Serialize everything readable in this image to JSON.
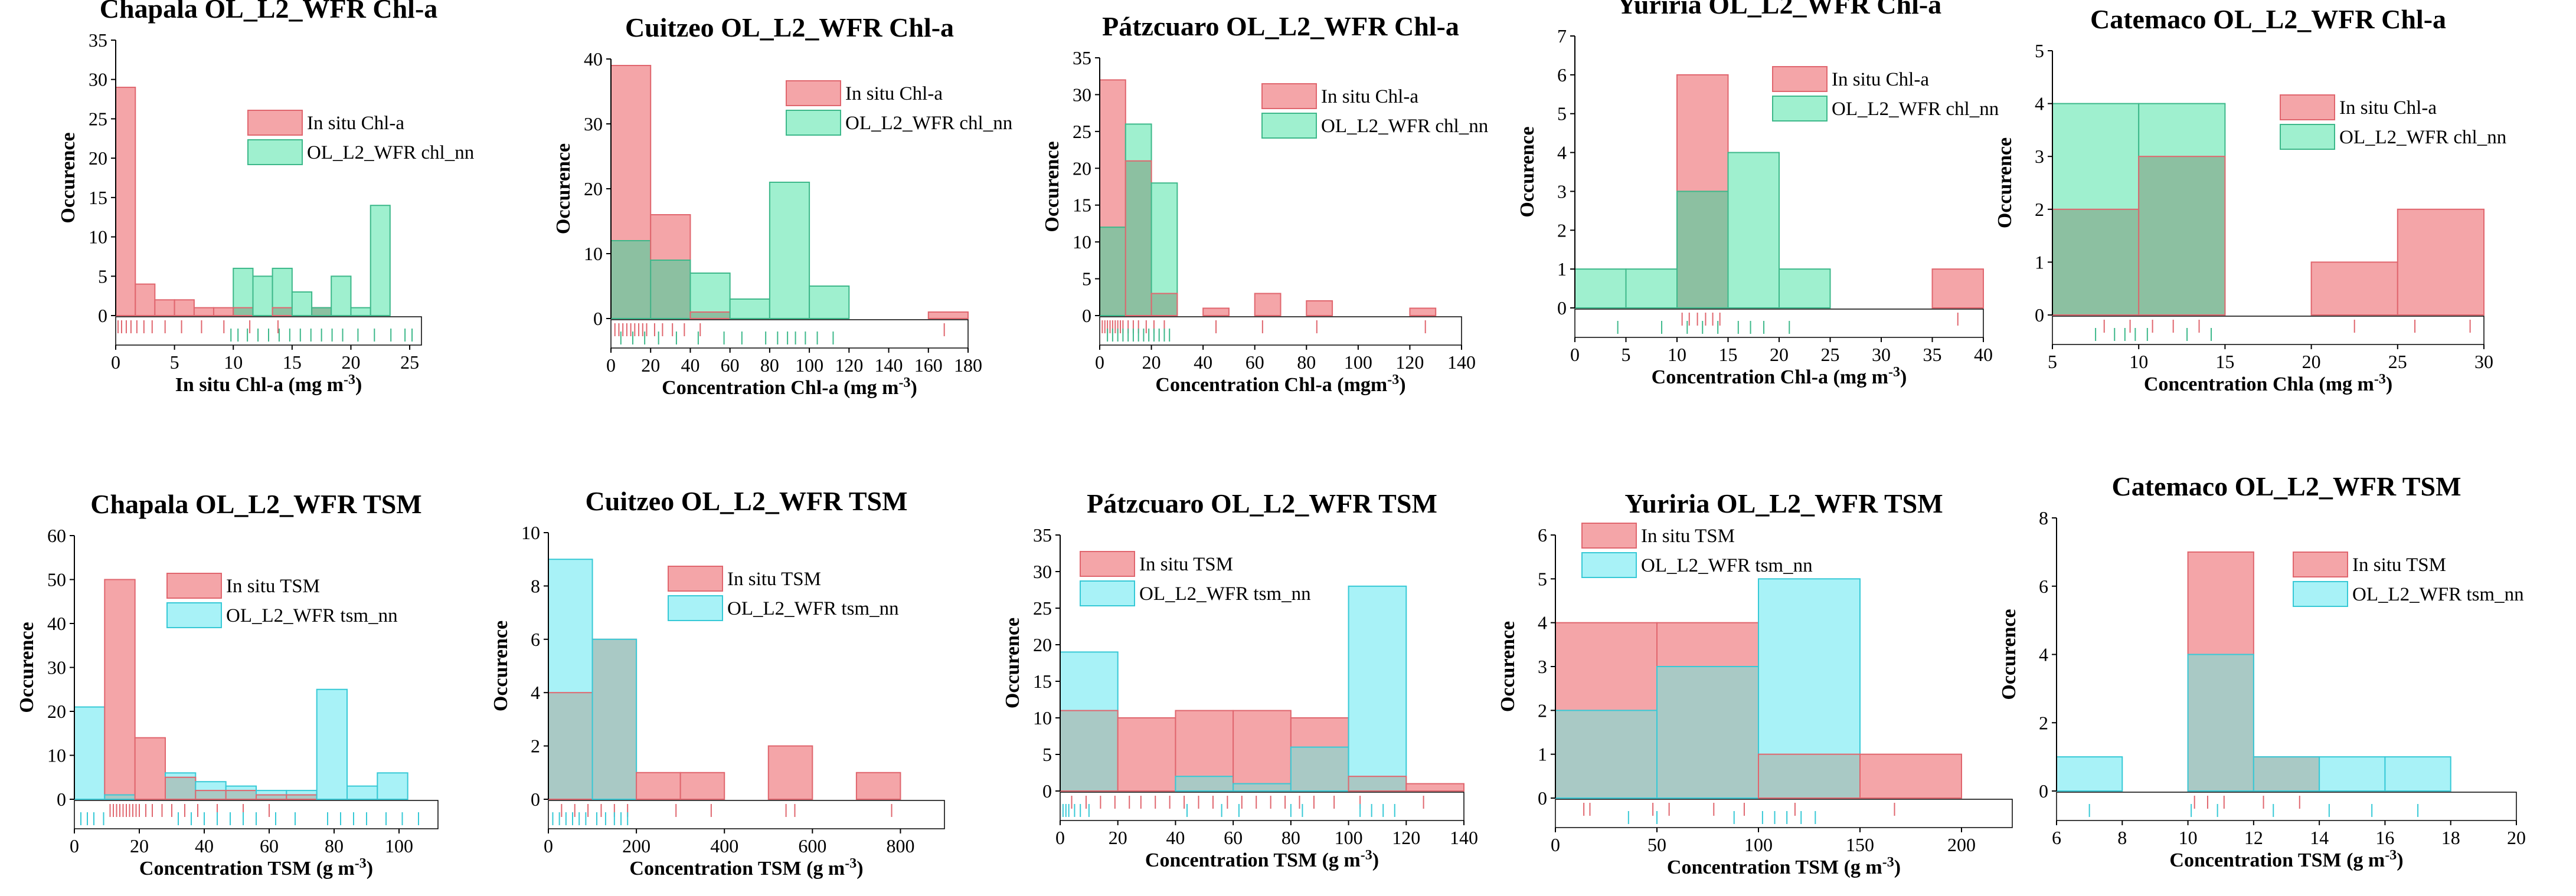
{
  "figure": {
    "title": ""
  },
  "palette": {
    "insitu": "#f4a5a8",
    "insitu_edge": "#e0666e",
    "chl": "#9ff0cf",
    "chl_edge": "#3db88a",
    "chl_overlap": "#8cc0a1",
    "tsm": "#a8f2f7",
    "tsm_edge": "#37c9d6",
    "tsm_overlap": "#a9c9c5",
    "rug_dark": "#555555"
  },
  "chart_data": [
    {
      "type": "bar",
      "title": "Chapala OL_L2_WFR Chl-a",
      "xlabel": "In situ Chl-a (mg m-3)",
      "ylabel": "Occurence",
      "xlim": [
        0,
        26
      ],
      "ylim": [
        0,
        35
      ],
      "xticks": [
        0,
        5,
        10,
        15,
        20,
        25
      ],
      "yticks": [
        0,
        5,
        10,
        15,
        20,
        25,
        30,
        35
      ],
      "bin_edges": [
        0,
        1.67,
        3.33,
        5,
        6.67,
        8.33,
        10,
        11.67,
        13.33,
        15,
        16.67,
        18.33,
        20,
        21.67,
        23.33,
        25,
        26.67
      ],
      "series": [
        {
          "name": "In situ Chl-a",
          "role": "insitu",
          "values": [
            29,
            4,
            2,
            2,
            1,
            1,
            1,
            0,
            1,
            0,
            1,
            0,
            0,
            0,
            0,
            0
          ]
        },
        {
          "name": "OL_L2_WFR chl_nn",
          "role": "model",
          "values": [
            0,
            0,
            0,
            0,
            0,
            0,
            6,
            5,
            6,
            3,
            1,
            5,
            1,
            14,
            0,
            0
          ]
        }
      ],
      "legend_position": "top-right",
      "rug": {
        "insitu": [
          0.2,
          0.5,
          0.9,
          1.3,
          1.8,
          2.4,
          3.1,
          4.2,
          5.6,
          7.3,
          9.2,
          11.4,
          13.8
        ],
        "model": [
          9.8,
          10.4,
          11.2,
          12.1,
          13.0,
          13.9,
          14.8,
          15.7,
          16.6,
          17.5,
          18.4,
          19.3,
          20.6,
          22.0,
          23.4,
          24.6,
          25.2
        ]
      }
    },
    {
      "type": "bar",
      "title": "Cuitzeo OL_L2_WFR Chl-a",
      "xlabel": "Concentration Chl-a (mg m-3)",
      "ylabel": "Occurence",
      "xlim": [
        0,
        180
      ],
      "ylim": [
        0,
        40
      ],
      "xticks": [
        0,
        20,
        40,
        60,
        80,
        100,
        120,
        140,
        160,
        180
      ],
      "yticks": [
        0,
        10,
        20,
        30,
        40
      ],
      "bin_edges": [
        0,
        20,
        40,
        60,
        80,
        100,
        120,
        140,
        160,
        180
      ],
      "series": [
        {
          "name": "In situ Chl-a",
          "role": "insitu",
          "values": [
            39,
            16,
            1,
            0,
            0,
            0,
            0,
            0,
            1
          ]
        },
        {
          "name": "OL_L2_WFR chl_nn",
          "role": "model",
          "values": [
            12,
            9,
            7,
            3,
            21,
            5,
            0,
            0,
            0
          ]
        }
      ],
      "legend_position": "top-right",
      "rug": {
        "insitu": [
          2,
          4,
          6,
          8,
          10,
          12,
          14,
          16,
          18,
          22,
          26,
          31,
          37,
          45,
          168
        ],
        "model": [
          5,
          11,
          17,
          24,
          33,
          44,
          57,
          66,
          78,
          84,
          89,
          93,
          98,
          104,
          112
        ]
      }
    },
    {
      "type": "bar",
      "title": "Pátzcuaro OL_L2_WFR Chl-a",
      "xlabel": "Concentration Chl-a (mgm-3)",
      "ylabel": "Occurence",
      "xlim": [
        0,
        140
      ],
      "ylim": [
        0,
        35
      ],
      "xticks": [
        0,
        20,
        40,
        60,
        80,
        100,
        120,
        140
      ],
      "yticks": [
        0,
        5,
        10,
        15,
        20,
        25,
        30,
        35
      ],
      "bin_edges": [
        0,
        10,
        20,
        30,
        40,
        50,
        60,
        70,
        80,
        90,
        100,
        110,
        120,
        130
      ],
      "series": [
        {
          "name": "In situ Chl-a",
          "role": "insitu",
          "values": [
            32,
            21,
            3,
            0,
            1,
            0,
            3,
            0,
            2,
            0,
            0,
            0,
            1
          ]
        },
        {
          "name": "OL_L2_WFR chl_nn",
          "role": "model",
          "values": [
            12,
            26,
            18,
            0,
            0,
            0,
            0,
            0,
            0,
            0,
            0,
            0,
            0
          ]
        }
      ],
      "legend_position": "top-right",
      "rug": {
        "insitu": [
          1,
          2,
          3,
          4,
          5,
          6,
          7,
          8,
          9,
          11,
          13,
          15,
          18,
          21,
          25,
          45,
          63,
          84,
          126
        ],
        "model": [
          3,
          5,
          7,
          9,
          11,
          13,
          15,
          17,
          19,
          21,
          23,
          25,
          27
        ]
      }
    },
    {
      "type": "bar",
      "title": "Yuriria OL_L2_WFR Chl-a",
      "xlabel": "Concentration Chl-a (mg m-3)",
      "ylabel": "Occurence",
      "xlim": [
        0,
        40
      ],
      "ylim": [
        0,
        7
      ],
      "xticks": [
        0,
        5,
        10,
        15,
        20,
        25,
        30,
        35,
        40
      ],
      "yticks": [
        0,
        1,
        2,
        3,
        4,
        5,
        6,
        7
      ],
      "bin_edges": [
        0,
        5,
        10,
        15,
        20,
        25,
        30,
        35,
        40
      ],
      "series": [
        {
          "name": "In situ Chl-a",
          "role": "insitu",
          "values": [
            0,
            0,
            6,
            0,
            0,
            0,
            0,
            1
          ]
        },
        {
          "name": "OL_L2_WFR chl_nn",
          "role": "model",
          "values": [
            1,
            1,
            3,
            4,
            1,
            0,
            0,
            0
          ]
        }
      ],
      "legend_position": "top-right",
      "rug": {
        "insitu": [
          10.5,
          11.2,
          12.0,
          12.8,
          13.5,
          14.2,
          37.5
        ],
        "model": [
          4.2,
          8.5,
          11.0,
          12.5,
          14.0,
          16.0,
          17.2,
          18.5,
          21.0
        ]
      }
    },
    {
      "type": "bar",
      "title": "Catemaco OL_L2_WFR Chl-a",
      "xlabel": "Concentration Chla (mg m-3)",
      "ylabel": "Occurence",
      "xlim": [
        5,
        30
      ],
      "ylim": [
        0,
        5
      ],
      "xticks": [
        5,
        10,
        15,
        20,
        25,
        30
      ],
      "yticks": [
        0,
        1,
        2,
        3,
        4,
        5
      ],
      "bin_edges": [
        5,
        10,
        15,
        20,
        25,
        30
      ],
      "series": [
        {
          "name": "In situ Chl-a",
          "role": "insitu",
          "values": [
            2,
            3,
            0,
            1,
            2
          ]
        },
        {
          "name": "OL_L2_WFR chl_nn",
          "role": "model",
          "values": [
            4,
            4,
            0,
            0,
            0
          ]
        }
      ],
      "legend_position": "top-right",
      "rug": {
        "insitu": [
          8.0,
          9.5,
          10.8,
          12.0,
          13.5,
          22.5,
          26.0,
          29.2
        ],
        "model": [
          7.5,
          8.6,
          9.2,
          9.8,
          10.5,
          12.8,
          14.2
        ]
      }
    },
    {
      "type": "bar",
      "title": "Chapala OL_L2_WFR TSM",
      "xlabel": "Concentration TSM (g m-3)",
      "ylabel": "Occurence",
      "xlim": [
        0,
        112
      ],
      "ylim": [
        0,
        60
      ],
      "xticks": [
        0,
        20,
        40,
        60,
        80,
        100
      ],
      "yticks": [
        0,
        10,
        20,
        30,
        40,
        50,
        60
      ],
      "bin_edges": [
        0,
        9.33,
        18.67,
        28,
        37.33,
        46.67,
        56,
        65.33,
        74.67,
        84,
        93.33,
        102.67,
        112
      ],
      "series": [
        {
          "name": "In situ TSM",
          "role": "insitu",
          "values": [
            0,
            50,
            14,
            5,
            2,
            2,
            1,
            1,
            0,
            0,
            0,
            0
          ]
        },
        {
          "name": "OL_L2_WFR tsm_nn",
          "role": "model",
          "values": [
            21,
            1,
            0,
            6,
            4,
            3,
            2,
            2,
            25,
            3,
            6,
            0
          ]
        }
      ],
      "legend_position": "top-right",
      "rug": {
        "insitu": [
          11,
          12,
          13,
          14,
          15,
          16,
          17,
          18,
          19,
          20,
          22,
          24,
          27,
          30,
          34,
          38,
          44,
          52,
          60
        ],
        "model": [
          2,
          4,
          6,
          9,
          32,
          36,
          40,
          44,
          48,
          52,
          56,
          62,
          68,
          78,
          82,
          86,
          90,
          96,
          101,
          106
        ]
      }
    },
    {
      "type": "bar",
      "title": "Cuitzeo OL_L2_WFR TSM",
      "xlabel": "Concentration TSM (g m-3)",
      "ylabel": "Occurence",
      "xlim": [
        0,
        900
      ],
      "ylim": [
        0,
        10
      ],
      "xticks": [
        0,
        200,
        400,
        600,
        800
      ],
      "yticks": [
        0,
        2,
        4,
        6,
        8,
        10
      ],
      "bin_edges": [
        0,
        100,
        200,
        300,
        400,
        500,
        600,
        700,
        800
      ],
      "series": [
        {
          "name": "In situ TSM",
          "role": "insitu",
          "values": [
            4,
            6,
            1,
            1,
            0,
            2,
            0,
            1
          ]
        },
        {
          "name": "OL_L2_WFR tsm_nn",
          "role": "model",
          "values": [
            9,
            6,
            0,
            0,
            0,
            0,
            0,
            0
          ]
        }
      ],
      "legend_position": "top-right",
      "rug": {
        "insitu": [
          30,
          60,
          90,
          120,
          150,
          180,
          290,
          370,
          540,
          560,
          780
        ],
        "model": [
          10,
          25,
          40,
          55,
          70,
          85,
          110,
          130,
          150,
          165,
          180
        ]
      }
    },
    {
      "type": "bar",
      "title": "Pátzcuaro OL_L2_WFR TSM",
      "xlabel": "Concentration TSM (g m-3)",
      "ylabel": "Occurence",
      "xlim": [
        0,
        140
      ],
      "ylim": [
        0,
        35
      ],
      "xticks": [
        0,
        20,
        40,
        60,
        80,
        100,
        120,
        140
      ],
      "yticks": [
        0,
        5,
        10,
        15,
        20,
        25,
        30,
        35
      ],
      "bin_edges": [
        0,
        20,
        40,
        60,
        80,
        100,
        120,
        140
      ],
      "series": [
        {
          "name": "In situ TSM",
          "role": "insitu",
          "values": [
            11,
            10,
            11,
            11,
            10,
            2,
            1
          ]
        },
        {
          "name": "OL_L2_WFR tsm_nn",
          "role": "model",
          "values": [
            19,
            0,
            2,
            1,
            6,
            28,
            0
          ]
        }
      ],
      "legend_position": "top-right",
      "rug": {
        "insitu": [
          4,
          9,
          14,
          19,
          24,
          28,
          33,
          38,
          43,
          48,
          53,
          58,
          63,
          68,
          73,
          78,
          83,
          88,
          95,
          104,
          126
        ],
        "model": [
          1,
          2,
          3,
          5,
          7,
          10,
          44,
          56,
          62,
          80,
          84,
          104,
          108,
          112,
          116
        ]
      }
    },
    {
      "type": "bar",
      "title": "Yuriria OL_L2_WFR TSM",
      "xlabel": "Concentration TSM (g m-3)",
      "ylabel": "Occurence",
      "xlim": [
        0,
        225
      ],
      "ylim": [
        0,
        6
      ],
      "xticks": [
        0,
        50,
        100,
        150,
        200
      ],
      "yticks": [
        0,
        1,
        2,
        3,
        4,
        5,
        6
      ],
      "bin_edges": [
        0,
        50,
        100,
        150,
        200
      ],
      "series": [
        {
          "name": "In situ TSM",
          "role": "insitu",
          "values": [
            4,
            4,
            1,
            1
          ]
        },
        {
          "name": "OL_L2_WFR tsm_nn",
          "role": "model",
          "values": [
            2,
            3,
            5,
            0
          ]
        }
      ],
      "legend_position": "top-left",
      "rug": {
        "insitu": [
          14,
          17,
          48,
          56,
          78,
          93,
          118,
          167
        ],
        "model": [
          36,
          50,
          88,
          102,
          108,
          114,
          121,
          128
        ]
      }
    },
    {
      "type": "bar",
      "title": "Catemaco OL_L2_WFR TSM",
      "xlabel": "Concentration TSM (g m-3)",
      "ylabel": "Occurence",
      "xlim": [
        6,
        20
      ],
      "ylim": [
        0,
        8
      ],
      "xticks": [
        6,
        8,
        10,
        12,
        14,
        16,
        18,
        20
      ],
      "yticks": [
        0,
        2,
        4,
        6,
        8
      ],
      "bin_edges": [
        6,
        8,
        10,
        12,
        14,
        16,
        18
      ],
      "series": [
        {
          "name": "In situ TSM",
          "role": "insitu",
          "values": [
            0,
            0,
            7,
            1,
            0,
            0
          ]
        },
        {
          "name": "OL_L2_WFR tsm_nn",
          "role": "model",
          "values": [
            1,
            0,
            4,
            1,
            1,
            1
          ]
        }
      ],
      "legend_position": "top-right",
      "rug": {
        "insitu": [
          10.2,
          10.6,
          11.1,
          12.3,
          13.4
        ],
        "model": [
          7.0,
          10.1,
          10.9,
          12.6,
          14.3,
          15.6,
          17.0
        ]
      }
    }
  ]
}
